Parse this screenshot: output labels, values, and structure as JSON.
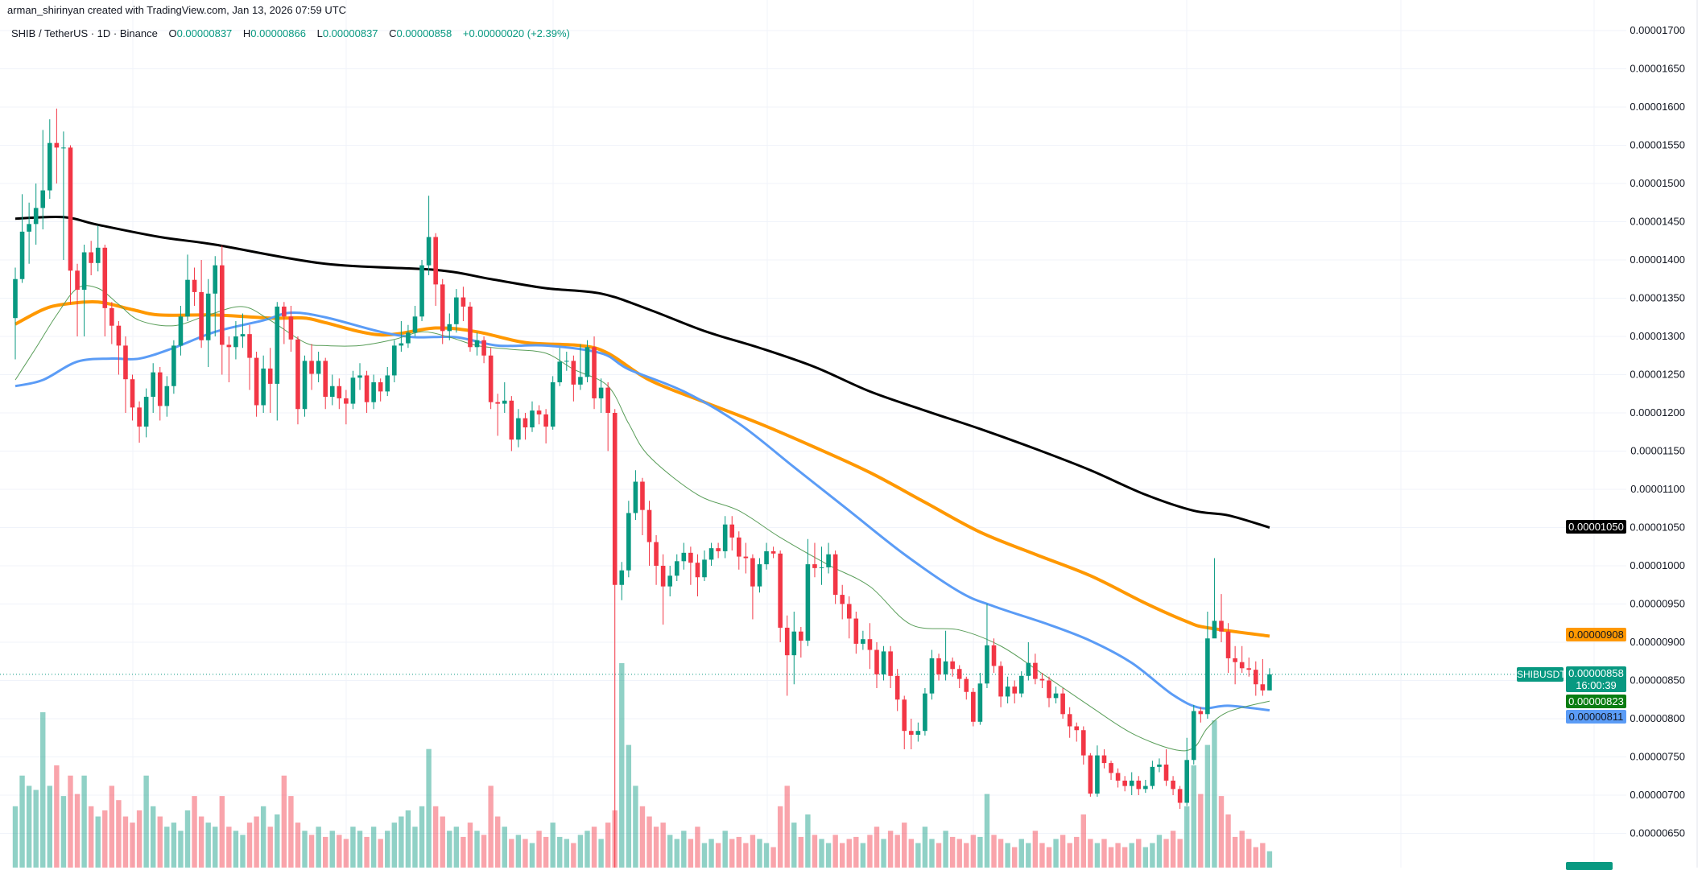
{
  "header": {
    "credit": "arman_shirinyan created with TradingView.com, Jan 13, 2026 07:59 UTC",
    "symbol": "SHIB / TetherUS · 1D · Binance",
    "o_label": "O",
    "o_value": "0.00000837",
    "h_label": "H",
    "h_value": "0.00000866",
    "l_label": "L",
    "l_value": "0.00000837",
    "c_label": "C",
    "c_value": "0.00000858",
    "change": "+0.00000020 (+2.39%)"
  },
  "price_axis": {
    "ticks": [
      "0.00001700",
      "0.00001650",
      "0.00001600",
      "0.00001550",
      "0.00001500",
      "0.00001450",
      "0.00001400",
      "0.00001350",
      "0.00001300",
      "0.00001250",
      "0.00001200",
      "0.00001150",
      "0.00001100",
      "0.00001050",
      "0.00001000",
      "0.00000950",
      "0.00000900",
      "0.00000850",
      "0.00000800",
      "0.00000750",
      "0.00000700",
      "0.00000650"
    ],
    "tags": {
      "ma200": "0.00001050",
      "ma100": "0.00000908",
      "symbol": "SHIBUSDT",
      "last_price": "0.00000858",
      "countdown": "16:00:39",
      "ma20": "0.00000823",
      "ma50": "0.00000811"
    }
  },
  "colors": {
    "up": "#089981",
    "down": "#f23645",
    "vol_up": "rgba(8,153,129,0.45)",
    "vol_down": "rgba(242,54,69,0.45)",
    "ma200": "#000000",
    "ma100": "#ff9800",
    "ma50": "#5b9cf6",
    "ma20": "#5a9e5a",
    "grid": "#f0f3fa"
  },
  "chart_data": {
    "type": "candlestick",
    "title": "SHIB / TetherUS · 1D · Binance",
    "price_scale": 1e-08,
    "ylim": [
      650,
      1700
    ],
    "first_open": 1324,
    "close": [
      1375,
      1437,
      1447,
      1468,
      1491,
      1553,
      1547,
      1547,
      1386,
      1361,
      1410,
      1396,
      1416,
      1337,
      1314,
      1288,
      1244,
      1207,
      1182,
      1221,
      1253,
      1209,
      1235,
      1288,
      1326,
      1374,
      1358,
      1295,
      1356,
      1393,
      1289,
      1286,
      1300,
      1303,
      1272,
      1210,
      1258,
      1238,
      1339,
      1326,
      1296,
      1205,
      1268,
      1251,
      1268,
      1221,
      1235,
      1219,
      1212,
      1246,
      1249,
      1214,
      1240,
      1228,
      1249,
      1288,
      1291,
      1305,
      1326,
      1393,
      1430,
      1368,
      1307,
      1316,
      1351,
      1339,
      1286,
      1295,
      1275,
      1214,
      1212,
      1216,
      1165,
      1193,
      1181,
      1203,
      1198,
      1182,
      1240,
      1267,
      1268,
      1237,
      1247,
      1286,
      1219,
      1233,
      1200,
      975,
      994,
      1069,
      1110,
      1073,
      1031,
      1000,
      973,
      987,
      1006,
      1017,
      1004,
      985,
      1008,
      1023,
      1019,
      1054,
      1037,
      1012,
      1010,
      973,
      1002,
      1019,
      1016,
      919,
      883,
      914,
      902,
      1002,
      997,
      998,
      1015,
      962,
      950,
      931,
      898,
      904,
      890,
      858,
      888,
      856,
      825,
      784,
      779,
      784,
      833,
      879,
      858,
      875,
      865,
      852,
      835,
      796,
      846,
      896,
      869,
      829,
      842,
      833,
      856,
      873,
      852,
      850,
      827,
      833,
      806,
      790,
      785,
      752,
      702,
      752,
      742,
      729,
      719,
      712,
      719,
      708,
      712,
      737,
      740,
      719,
      708,
      690,
      746,
      810,
      806,
      905,
      928,
      914,
      879,
      874,
      866,
      864,
      845,
      837,
      858
    ],
    "high": [
      1390,
      1486,
      1475,
      1500,
      1570,
      1584,
      1598,
      1568,
      1550,
      1395,
      1420,
      1425,
      1445,
      1420,
      1345,
      1320,
      1300,
      1250,
      1215,
      1232,
      1265,
      1260,
      1248,
      1295,
      1340,
      1407,
      1390,
      1400,
      1375,
      1405,
      1419,
      1300,
      1320,
      1330,
      1315,
      1280,
      1275,
      1285,
      1345,
      1345,
      1340,
      1300,
      1275,
      1290,
      1280,
      1272,
      1250,
      1245,
      1230,
      1255,
      1265,
      1255,
      1250,
      1245,
      1260,
      1295,
      1320,
      1315,
      1340,
      1400,
      1484,
      1435,
      1375,
      1330,
      1362,
      1365,
      1345,
      1305,
      1300,
      1285,
      1225,
      1240,
      1222,
      1205,
      1200,
      1215,
      1210,
      1205,
      1248,
      1285,
      1280,
      1275,
      1290,
      1295,
      1300,
      1245,
      1240,
      1205,
      1005,
      1085,
      1125,
      1115,
      1085,
      1040,
      1015,
      1000,
      1015,
      1030,
      1025,
      1015,
      1020,
      1030,
      1030,
      1065,
      1065,
      1045,
      1030,
      1015,
      1010,
      1030,
      1025,
      1020,
      935,
      940,
      920,
      1035,
      1030,
      1025,
      1030,
      1020,
      975,
      960,
      940,
      915,
      925,
      900,
      895,
      895,
      865,
      830,
      800,
      795,
      840,
      890,
      885,
      915,
      880,
      870,
      855,
      840,
      860,
      950,
      905,
      875,
      855,
      850,
      862,
      900,
      885,
      860,
      855,
      842,
      840,
      815,
      795,
      790,
      755,
      765,
      760,
      745,
      735,
      725,
      730,
      725,
      720,
      745,
      748,
      760,
      725,
      712,
      775,
      818,
      815,
      940,
      1010,
      963,
      925,
      895,
      895,
      880,
      875,
      878,
      866
    ],
    "low": [
      1270,
      1370,
      1395,
      1420,
      1440,
      1480,
      1500,
      1400,
      1342,
      1300,
      1300,
      1380,
      1385,
      1300,
      1290,
      1250,
      1200,
      1190,
      1161,
      1168,
      1200,
      1190,
      1195,
      1225,
      1275,
      1320,
      1340,
      1285,
      1260,
      1300,
      1250,
      1240,
      1270,
      1285,
      1230,
      1195,
      1200,
      1200,
      1190,
      1290,
      1280,
      1185,
      1195,
      1230,
      1240,
      1205,
      1210,
      1205,
      1185,
      1205,
      1230,
      1200,
      1205,
      1215,
      1222,
      1240,
      1280,
      1285,
      1300,
      1320,
      1380,
      1340,
      1290,
      1295,
      1305,
      1320,
      1280,
      1275,
      1265,
      1205,
      1170,
      1200,
      1150,
      1155,
      1165,
      1175,
      1185,
      1160,
      1178,
      1235,
      1255,
      1215,
      1230,
      1240,
      1205,
      1200,
      1150,
      520,
      955,
      985,
      1060,
      1040,
      1000,
      975,
      923,
      960,
      980,
      995,
      975,
      960,
      980,
      1000,
      1010,
      1010,
      1020,
      995,
      990,
      930,
      965,
      995,
      1010,
      900,
      830,
      845,
      880,
      895,
      985,
      975,
      990,
      950,
      930,
      905,
      885,
      890,
      865,
      840,
      850,
      840,
      810,
      760,
      760,
      770,
      778,
      825,
      850,
      850,
      855,
      840,
      825,
      790,
      792,
      840,
      860,
      815,
      820,
      820,
      828,
      850,
      845,
      840,
      815,
      820,
      800,
      775,
      770,
      740,
      698,
      698,
      735,
      720,
      710,
      705,
      700,
      700,
      703,
      708,
      730,
      712,
      700,
      682,
      686,
      740,
      795,
      800,
      915,
      900,
      860,
      845,
      860,
      855,
      830,
      830,
      837
    ],
    "volume": [
      30,
      45,
      40,
      38,
      76,
      40,
      50,
      35,
      45,
      36,
      45,
      30,
      25,
      28,
      40,
      33,
      25,
      22,
      28,
      45,
      30,
      25,
      20,
      22,
      18,
      28,
      35,
      25,
      22,
      20,
      35,
      20,
      18,
      16,
      22,
      25,
      30,
      20,
      26,
      45,
      35,
      22,
      18,
      16,
      20,
      15,
      18,
      16,
      14,
      20,
      18,
      15,
      20,
      14,
      18,
      22,
      25,
      28,
      20,
      30,
      58,
      30,
      25,
      18,
      20,
      15,
      22,
      18,
      16,
      40,
      25,
      20,
      14,
      16,
      14,
      12,
      18,
      15,
      22,
      15,
      14,
      12,
      16,
      18,
      20,
      14,
      22,
      28,
      100,
      60,
      40,
      30,
      25,
      20,
      22,
      16,
      14,
      18,
      14,
      20,
      12,
      14,
      12,
      18,
      14,
      15,
      12,
      16,
      14,
      12,
      10,
      30,
      40,
      22,
      15,
      26,
      16,
      14,
      12,
      16,
      12,
      14,
      15,
      12,
      16,
      20,
      14,
      18,
      16,
      22,
      14,
      12,
      20,
      14,
      12,
      18,
      15,
      14,
      12,
      16,
      15,
      36,
      16,
      14,
      12,
      10,
      14,
      12,
      18,
      12,
      10,
      14,
      16,
      12,
      15,
      26,
      14,
      12,
      14,
      10,
      12,
      10,
      12,
      14,
      10,
      12,
      16,
      14,
      18,
      14,
      30,
      50,
      36,
      60,
      72,
      35,
      26,
      15,
      18,
      14,
      10,
      12,
      8
    ],
    "moving_averages": [
      {
        "name": "MA200",
        "color_key": "ma200",
        "width": 3,
        "points": [
          [
            0,
            1454
          ],
          [
            7,
            1456
          ],
          [
            12,
            1446
          ],
          [
            21,
            1430
          ],
          [
            29,
            1420
          ],
          [
            45,
            1395
          ],
          [
            61,
            1387
          ],
          [
            69,
            1375
          ],
          [
            77,
            1363
          ],
          [
            85,
            1356
          ],
          [
            92,
            1335
          ],
          [
            100,
            1307
          ],
          [
            108,
            1285
          ],
          [
            116,
            1260
          ],
          [
            124,
            1228
          ],
          [
            132,
            1203
          ],
          [
            140,
            1179
          ],
          [
            148,
            1153
          ],
          [
            156,
            1125
          ],
          [
            164,
            1093
          ],
          [
            171,
            1072
          ],
          [
            176,
            1066
          ],
          [
            182,
            1050
          ]
        ]
      },
      {
        "name": "MA100",
        "color_key": "ma100",
        "width": 4,
        "points": [
          [
            0,
            1316
          ],
          [
            4,
            1335
          ],
          [
            7,
            1342
          ],
          [
            12,
            1345
          ],
          [
            17,
            1335
          ],
          [
            21,
            1328
          ],
          [
            29,
            1328
          ],
          [
            37,
            1324
          ],
          [
            42,
            1324
          ],
          [
            45,
            1318
          ],
          [
            53,
            1302
          ],
          [
            61,
            1311
          ],
          [
            67,
            1306
          ],
          [
            74,
            1292
          ],
          [
            82,
            1288
          ],
          [
            86,
            1278
          ],
          [
            92,
            1243
          ],
          [
            100,
            1214
          ],
          [
            108,
            1186
          ],
          [
            116,
            1155
          ],
          [
            124,
            1122
          ],
          [
            132,
            1083
          ],
          [
            140,
            1044
          ],
          [
            148,
            1015
          ],
          [
            156,
            987
          ],
          [
            164,
            951
          ],
          [
            170,
            927
          ],
          [
            173,
            919
          ],
          [
            182,
            908
          ]
        ]
      },
      {
        "name": "MA50",
        "color_key": "ma50",
        "width": 3,
        "points": [
          [
            0,
            1235
          ],
          [
            4,
            1243
          ],
          [
            9,
            1267
          ],
          [
            14,
            1271
          ],
          [
            18,
            1271
          ],
          [
            23,
            1285
          ],
          [
            29,
            1306
          ],
          [
            36,
            1321
          ],
          [
            40,
            1331
          ],
          [
            45,
            1325
          ],
          [
            53,
            1306
          ],
          [
            58,
            1299
          ],
          [
            64,
            1299
          ],
          [
            70,
            1288
          ],
          [
            77,
            1288
          ],
          [
            85,
            1278
          ],
          [
            89,
            1257
          ],
          [
            97,
            1228
          ],
          [
            105,
            1186
          ],
          [
            113,
            1129
          ],
          [
            121,
            1072
          ],
          [
            129,
            1015
          ],
          [
            137,
            966
          ],
          [
            142,
            947
          ],
          [
            150,
            923
          ],
          [
            156,
            902
          ],
          [
            162,
            873
          ],
          [
            168,
            831
          ],
          [
            172,
            814
          ],
          [
            176,
            817
          ],
          [
            182,
            811
          ]
        ]
      },
      {
        "name": "MA20",
        "color_key": "ma20",
        "width": 1,
        "points": [
          [
            0,
            1243
          ],
          [
            3,
            1285
          ],
          [
            6,
            1328
          ],
          [
            9,
            1363
          ],
          [
            12,
            1363
          ],
          [
            15,
            1342
          ],
          [
            18,
            1321
          ],
          [
            23,
            1314
          ],
          [
            28,
            1328
          ],
          [
            33,
            1339
          ],
          [
            37,
            1321
          ],
          [
            42,
            1292
          ],
          [
            45,
            1288
          ],
          [
            50,
            1288
          ],
          [
            55,
            1296
          ],
          [
            59,
            1306
          ],
          [
            63,
            1299
          ],
          [
            67,
            1288
          ],
          [
            72,
            1283
          ],
          [
            77,
            1278
          ],
          [
            81,
            1257
          ],
          [
            86,
            1235
          ],
          [
            89,
            1186
          ],
          [
            92,
            1143
          ],
          [
            99,
            1093
          ],
          [
            105,
            1072
          ],
          [
            111,
            1037
          ],
          [
            118,
            1001
          ],
          [
            124,
            973
          ],
          [
            130,
            923
          ],
          [
            137,
            916
          ],
          [
            143,
            895
          ],
          [
            149,
            859
          ],
          [
            156,
            816
          ],
          [
            162,
            781
          ],
          [
            168,
            760
          ],
          [
            171,
            762
          ],
          [
            173,
            788
          ],
          [
            176,
            809
          ],
          [
            182,
            823
          ]
        ]
      }
    ],
    "last_price": 858
  }
}
